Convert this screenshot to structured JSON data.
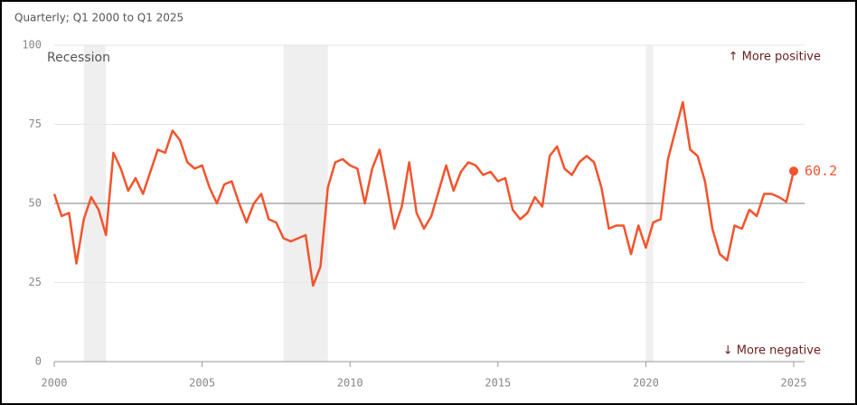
{
  "chart_data": {
    "type": "line",
    "subtitle": "Quarterly; Q1 2000 to Q1 2025",
    "annotations": {
      "recession": "Recession",
      "positive": "↑ More positive",
      "negative": "↓ More negative"
    },
    "x": [
      2000,
      2000.25,
      2000.5,
      2000.75,
      2001,
      2001.25,
      2001.5,
      2001.75,
      2002,
      2002.25,
      2002.5,
      2002.75,
      2003,
      2003.25,
      2003.5,
      2003.75,
      2004,
      2004.25,
      2004.5,
      2004.75,
      2005,
      2005.25,
      2005.5,
      2005.75,
      2006,
      2006.25,
      2006.5,
      2006.75,
      2007,
      2007.25,
      2007.5,
      2007.75,
      2008,
      2008.25,
      2008.5,
      2008.75,
      2009,
      2009.25,
      2009.5,
      2009.75,
      2010,
      2010.25,
      2010.5,
      2010.75,
      2011,
      2011.25,
      2011.5,
      2011.75,
      2012,
      2012.25,
      2012.5,
      2012.75,
      2013,
      2013.25,
      2013.5,
      2013.75,
      2014,
      2014.25,
      2014.5,
      2014.75,
      2015,
      2015.25,
      2015.5,
      2015.75,
      2016,
      2016.25,
      2016.5,
      2016.75,
      2017,
      2017.25,
      2017.5,
      2017.75,
      2018,
      2018.25,
      2018.5,
      2018.75,
      2019,
      2019.25,
      2019.5,
      2019.75,
      2020,
      2020.25,
      2020.5,
      2020.75,
      2021,
      2021.25,
      2021.5,
      2021.75,
      2022,
      2022.25,
      2022.5,
      2022.75,
      2023,
      2023.25,
      2023.5,
      2023.75,
      2024,
      2024.25,
      2024.5,
      2024.75,
      2025
    ],
    "values": [
      53,
      46,
      47,
      31,
      45,
      52,
      48,
      40,
      66,
      61,
      54,
      58,
      53,
      60,
      67,
      66,
      73,
      70,
      63,
      61,
      62,
      55,
      50,
      56,
      57,
      50,
      44,
      50,
      53,
      45,
      44,
      39,
      38,
      39,
      40,
      24,
      30,
      55,
      63,
      64,
      62,
      61,
      50,
      61,
      67,
      55,
      42,
      49,
      63,
      47,
      42,
      46,
      54,
      62,
      54,
      60,
      63,
      62,
      59,
      60,
      57,
      58,
      48,
      45,
      47,
      52,
      49,
      65,
      68,
      61,
      59,
      63,
      65,
      63,
      55,
      42,
      43,
      43,
      34,
      43,
      36,
      44,
      45,
      64,
      73,
      82,
      67,
      65,
      57,
      42,
      34,
      32,
      43,
      42,
      48,
      46,
      53,
      53,
      52,
      50.5,
      60.2
    ],
    "color": "#f2542d",
    "recessions": [
      [
        2001,
        2001.75
      ],
      [
        2007.75,
        2009.25
      ],
      [
        2020,
        2020.25
      ]
    ],
    "reference_line": 50,
    "xlim": [
      2000,
      2025
    ],
    "xticks": [
      2000,
      2005,
      2010,
      2015,
      2020,
      2025
    ],
    "ylim": [
      0,
      100
    ],
    "yticks": [
      0,
      25,
      50,
      75,
      100
    ],
    "grid": true
  }
}
